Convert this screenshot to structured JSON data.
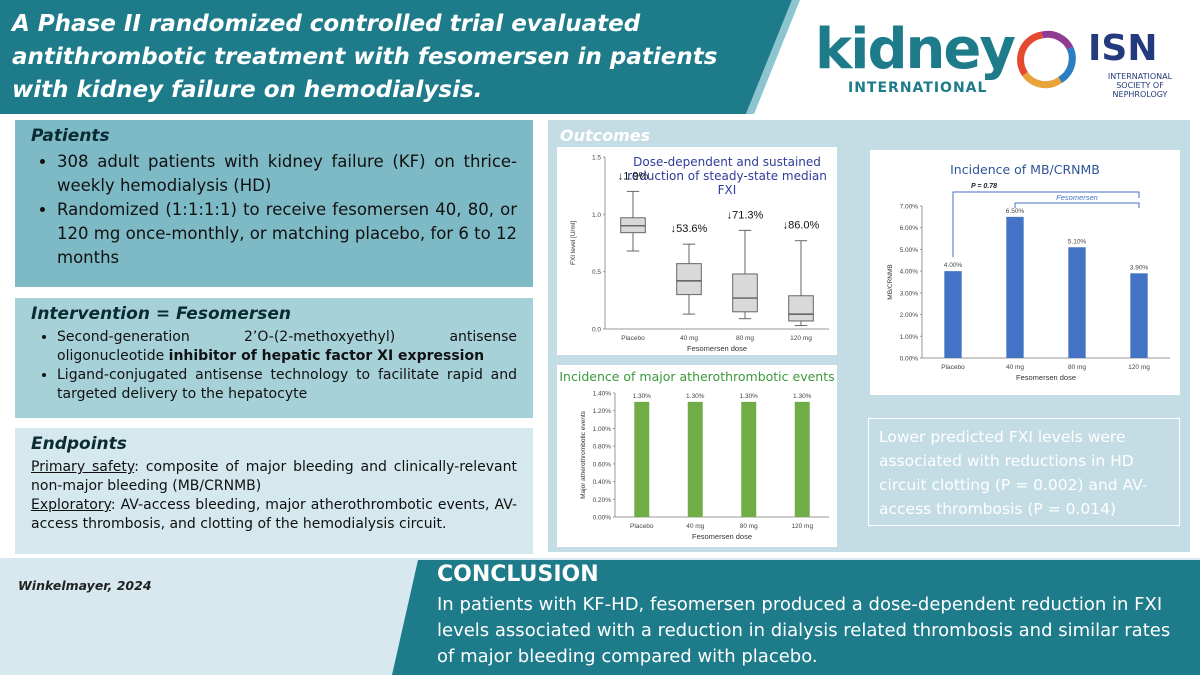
{
  "header": {
    "title": "A Phase II randomized controlled trial evaluated antithrombotic treatment with fesomersen in patients with kidney failure on hemodialysis.",
    "logo_kidney": "kidney",
    "logo_kidney_sub": "INTERNATIONAL",
    "logo_isn": "ISN",
    "logo_isn_sub": "INTERNATIONAL SOCIETY OF NEPHROLOGY"
  },
  "patients": {
    "title": "Patients",
    "bullets": [
      "308 adult patients with kidney failure (KF) on thrice-weekly hemodialysis (HD)",
      "Randomized (1:1:1:1) to receive fesomersen 40, 80, or 120 mg once-monthly, or matching placebo, for 6 to 12 months"
    ]
  },
  "intervention": {
    "title": "Intervention = Fesomersen",
    "bullets": [
      [
        "Second-generation 2’O-(2-methoxyethyl) antisense oligonucleotide ",
        "inhibitor of hepatic factor XI expression"
      ],
      [
        "Ligand-conjugated antisense technology to facilitate rapid and targeted delivery to the hepatocyte"
      ]
    ]
  },
  "endpoints": {
    "title": "Endpoints",
    "items": [
      [
        "Primary safety",
        ": composite of major bleeding and clinically-relevant non-major bleeding (MB/CRNMB)"
      ],
      [
        "Exploratory",
        ": AV-access bleeding, major atherothrombotic events, AV-access thrombosis, and clotting of the hemodialysis circuit."
      ]
    ]
  },
  "outcomes": {
    "title": "Outcomes",
    "charts": [
      {
        "type": "box",
        "title": "Dose-dependent and sustained reduction of steady-state median FXI",
        "y_label": "FXI level [U/ml]",
        "x_label": "Fesomersen dose",
        "categories": [
          "Placebo",
          "40 mg",
          "80 mg",
          "120 mg"
        ],
        "boxes": [
          {
            "low": 0.68,
            "q1": 0.84,
            "median": 0.9,
            "q3": 0.97,
            "high": 1.2
          },
          {
            "low": 0.13,
            "q1": 0.3,
            "median": 0.42,
            "q3": 0.57,
            "high": 0.74
          },
          {
            "low": 0.09,
            "q1": 0.15,
            "median": 0.27,
            "q3": 0.48,
            "high": 0.86
          },
          {
            "low": 0.03,
            "q1": 0.07,
            "median": 0.13,
            "q3": 0.29,
            "high": 0.77
          }
        ],
        "annotations": [
          "↓1.9%",
          "↓53.6%",
          "↓71.3%",
          "↓86.0%"
        ],
        "color": "#d9d9d9",
        "ylim": [
          0,
          1.5
        ],
        "yticks": [
          {
            "value": 0,
            "label": "0.0"
          },
          {
            "value": 0.5,
            "label": "0.5"
          },
          {
            "value": 1,
            "label": "1.0"
          },
          {
            "value": 1.5,
            "label": "1.5"
          }
        ]
      },
      {
        "type": "bar",
        "title": "Incidence of major atherothrombotic events",
        "y_label": "Major atherothrombotic events",
        "x_label": "Fesomersen dose",
        "categories": [
          "Placebo",
          "40 mg",
          "80 mg",
          "120 mg"
        ],
        "values": [
          1.3,
          1.3,
          1.3,
          1.3
        ],
        "value_labels": [
          "1.30%",
          "1.30%",
          "1.30%",
          "1.30%"
        ],
        "color": "#70ad47",
        "ylim": [
          0,
          1.4
        ],
        "yticks": [
          {
            "value": 0,
            "label": "0.00%"
          },
          {
            "value": 0.2,
            "label": "0.20%"
          },
          {
            "value": 0.4,
            "label": "0.40%"
          },
          {
            "value": 0.6,
            "label": "0.60%"
          },
          {
            "value": 0.8,
            "label": "0.80%"
          },
          {
            "value": 1,
            "label": "1.00%"
          },
          {
            "value": 1.2,
            "label": "1.20%"
          },
          {
            "value": 1.4,
            "label": "1.40%"
          }
        ]
      },
      {
        "type": "bar",
        "title": "Incidence of MB/CRNMB",
        "y_label": "MB/CRNMB",
        "x_label": "Fesomersen dose",
        "categories": [
          "Placebo",
          "40 mg",
          "80 mg",
          "120 mg"
        ],
        "values": [
          4.0,
          6.5,
          5.1,
          3.9
        ],
        "value_labels": [
          "4.00%",
          "6.50%",
          "5.10%",
          "3.90%"
        ],
        "color": "#4472c4",
        "p_value": "P = 0.78",
        "group_label": "Fesomersen",
        "ylim": [
          0,
          7
        ],
        "yticks": [
          {
            "value": 0,
            "label": "0.00%"
          },
          {
            "value": 1,
            "label": "1.00%"
          },
          {
            "value": 2,
            "label": "2.00%"
          },
          {
            "value": 3,
            "label": "3.00%"
          },
          {
            "value": 4,
            "label": "4.00%"
          },
          {
            "value": 5,
            "label": "5.00%"
          },
          {
            "value": 6,
            "label": "6.00%"
          },
          {
            "value": 7,
            "label": "7.00%"
          }
        ]
      }
    ],
    "finding": "Lower predicted FXI levels were associated with reductions in HD circuit clotting (P = 0.002) and AV-access thrombosis (P = 0.014)"
  },
  "citation": "Winkelmayer, 2024",
  "conclusion": {
    "title": "CONCLUSION",
    "text": "In patients with KF-HD, fesomersen produced a dose-dependent reduction in FXI levels associated with a reduction in dialysis related thrombosis  and similar rates of major bleeding compared with placebo."
  }
}
